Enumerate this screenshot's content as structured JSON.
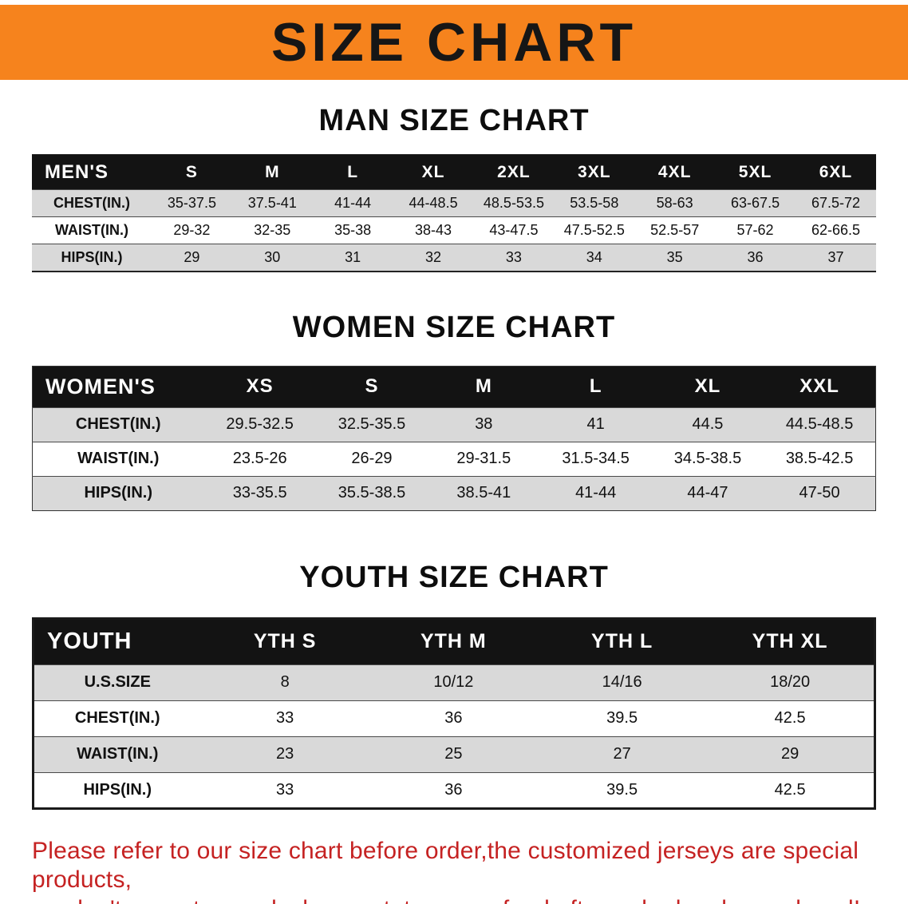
{
  "banner": {
    "title": "SIZE CHART"
  },
  "colors": {
    "banner_bg": "#f6831d",
    "table_header_bg": "#131313",
    "row_stripe": "#d9d9d9",
    "footer_text": "#c52222"
  },
  "sections": [
    {
      "heading": "MAN SIZE CHART",
      "table": {
        "header": [
          "MEN'S",
          "S",
          "M",
          "L",
          "XL",
          "2XL",
          "3XL",
          "4XL",
          "5XL",
          "6XL"
        ],
        "rows": [
          [
            "CHEST(IN.)",
            "35-37.5",
            "37.5-41",
            "41-44",
            "44-48.5",
            "48.5-53.5",
            "53.5-58",
            "58-63",
            "63-67.5",
            "67.5-72"
          ],
          [
            "WAIST(IN.)",
            "29-32",
            "32-35",
            "35-38",
            "38-43",
            "43-47.5",
            "47.5-52.5",
            "52.5-57",
            "57-62",
            "62-66.5"
          ],
          [
            "HIPS(IN.)",
            "29",
            "30",
            "31",
            "32",
            "33",
            "34",
            "35",
            "36",
            "37"
          ]
        ]
      }
    },
    {
      "heading": "WOMEN SIZE CHART",
      "table": {
        "header": [
          "WOMEN'S",
          "XS",
          "S",
          "M",
          "L",
          "XL",
          "XXL"
        ],
        "rows": [
          [
            "CHEST(IN.)",
            "29.5-32.5",
            "32.5-35.5",
            "38",
            "41",
            "44.5",
            "44.5-48.5"
          ],
          [
            "WAIST(IN.)",
            "23.5-26",
            "26-29",
            "29-31.5",
            "31.5-34.5",
            "34.5-38.5",
            "38.5-42.5"
          ],
          [
            "HIPS(IN.)",
            "33-35.5",
            "35.5-38.5",
            "38.5-41",
            "41-44",
            "44-47",
            "47-50"
          ]
        ]
      }
    },
    {
      "heading": "YOUTH SIZE CHART",
      "table": {
        "header": [
          "YOUTH",
          "YTH S",
          "YTH M",
          "YTH L",
          "YTH XL"
        ],
        "rows": [
          [
            "U.S.SIZE",
            "8",
            "10/12",
            "14/16",
            "18/20"
          ],
          [
            "CHEST(IN.)",
            "33",
            "36",
            "39.5",
            "42.5"
          ],
          [
            "WAIST(IN.)",
            "23",
            "25",
            "27",
            "29"
          ],
          [
            "HIPS(IN.)",
            "33",
            "36",
            "39.5",
            "42.5"
          ]
        ]
      }
    }
  ],
  "footer": {
    "line1": "Please refer to our size chart before order,the customized jerseys are special products,",
    "line2": "we don't accept cancel, change, teturn or refund after order has been placed!"
  }
}
